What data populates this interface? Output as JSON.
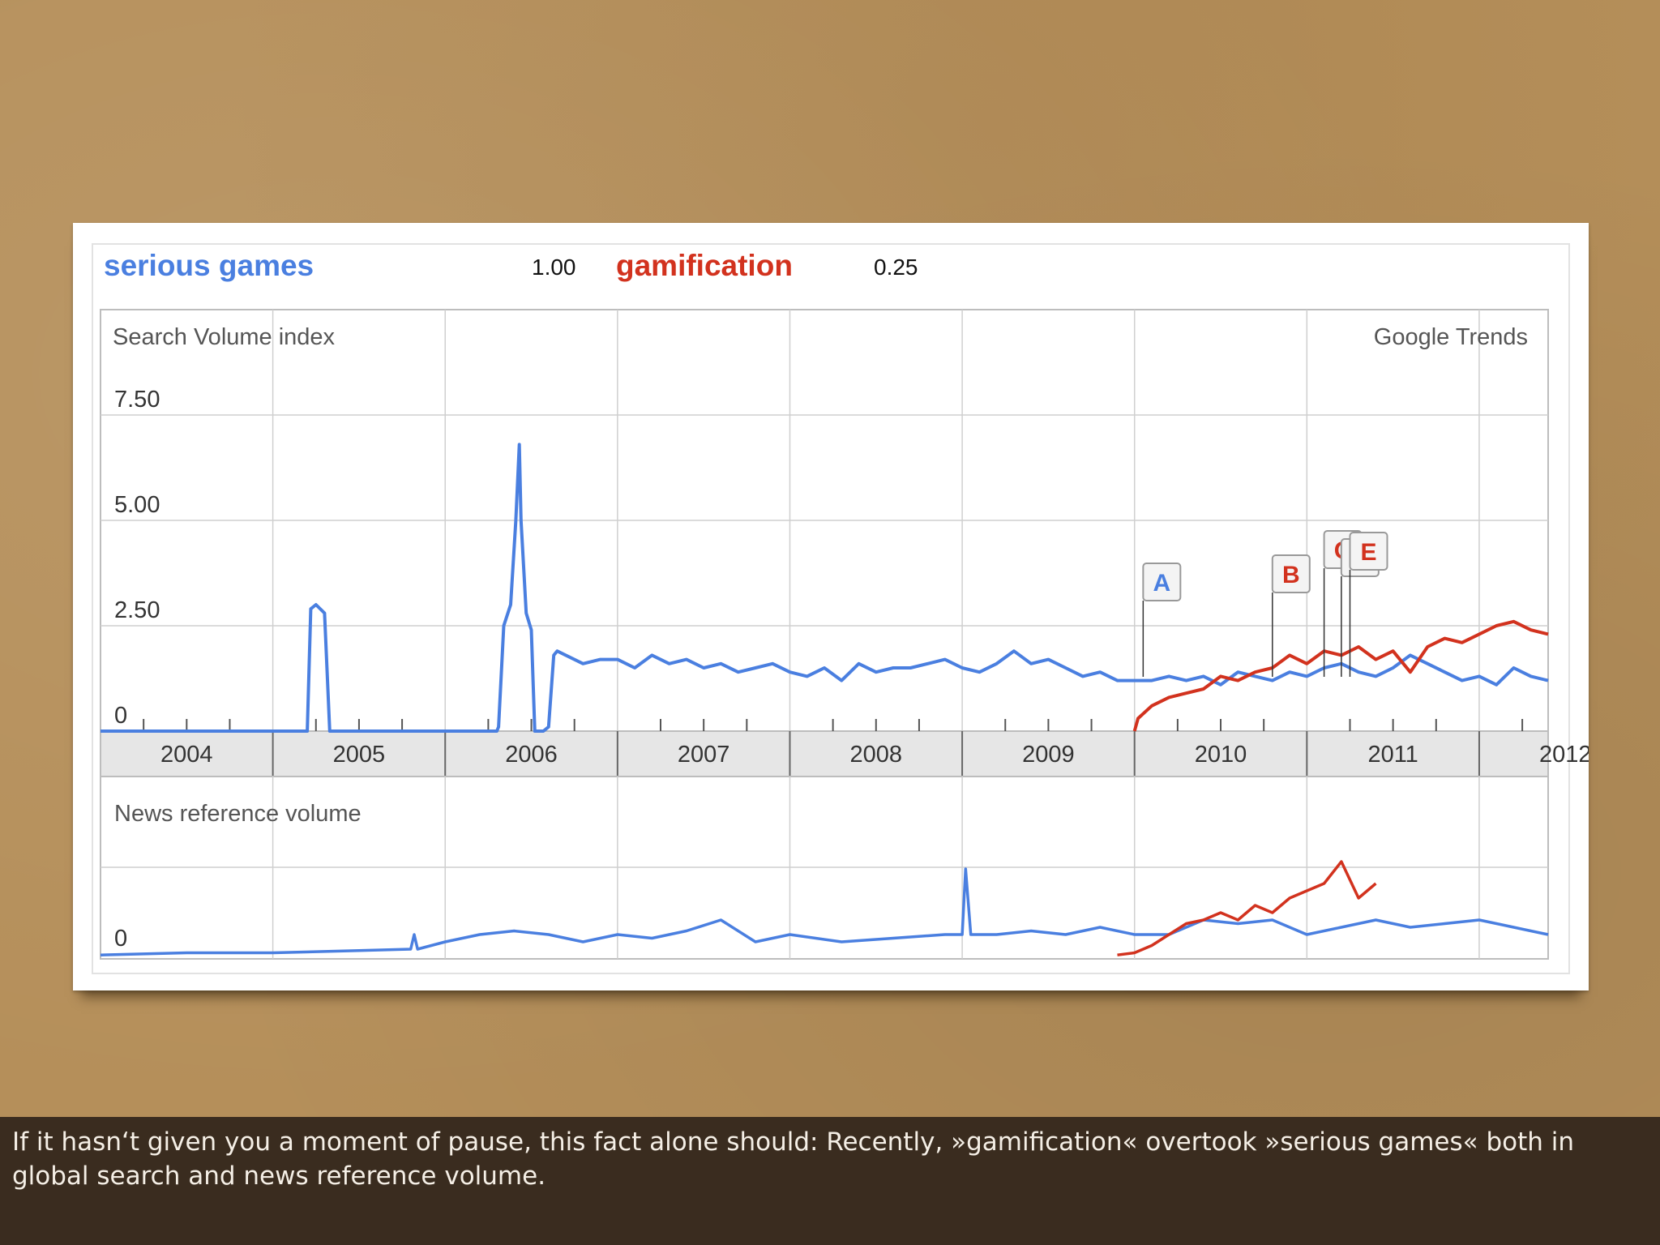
{
  "legend": {
    "series1_name": "serious games",
    "series1_value": "1.00",
    "series2_name": "gamification",
    "series2_value": "0.25"
  },
  "colors": {
    "serious_games": "#4a7fe0",
    "gamification": "#d2321e",
    "caption_background": "#3a2c1f"
  },
  "caption": "If it hasn‘t given you a moment of pause, this fact alone should: Recently, »gamification« overtook »serious games« both in global search and news reference volume.",
  "chart_data": [
    {
      "type": "line",
      "title": "Search Volume index",
      "source_label": "Google Trends",
      "y_tick_labels": [
        "0",
        "2.50",
        "5.00",
        "7.50"
      ],
      "ylim": [
        0,
        7.5
      ],
      "x_tick_labels": [
        "2004",
        "2005",
        "2006",
        "2007",
        "2008",
        "2009",
        "2010",
        "2011",
        "2012"
      ],
      "xlim": [
        2004.0,
        2012.4
      ],
      "series": [
        {
          "name": "serious games",
          "x": [
            2004.0,
            2005.2,
            2005.22,
            2005.25,
            2005.3,
            2005.33,
            2005.34,
            2006.3,
            2006.31,
            2006.34,
            2006.38,
            2006.41,
            2006.43,
            2006.44,
            2006.47,
            2006.5,
            2006.52,
            2006.54,
            2006.57,
            2006.6,
            2006.63,
            2006.65,
            2006.7,
            2006.8,
            2006.9,
            2007.0,
            2007.1,
            2007.2,
            2007.3,
            2007.4,
            2007.5,
            2007.6,
            2007.7,
            2007.8,
            2007.9,
            2008.0,
            2008.1,
            2008.2,
            2008.3,
            2008.4,
            2008.5,
            2008.6,
            2008.7,
            2008.8,
            2008.9,
            2009.0,
            2009.1,
            2009.2,
            2009.3,
            2009.4,
            2009.5,
            2009.6,
            2009.7,
            2009.8,
            2009.9,
            2010.0,
            2010.1,
            2010.2,
            2010.3,
            2010.4,
            2010.5,
            2010.6,
            2010.7,
            2010.8,
            2010.9,
            2011.0,
            2011.1,
            2011.2,
            2011.3,
            2011.4,
            2011.5,
            2011.6,
            2011.7,
            2011.8,
            2011.9,
            2012.0,
            2012.1,
            2012.2,
            2012.3,
            2012.4
          ],
          "y": [
            0,
            0,
            2.9,
            3.0,
            2.8,
            0,
            0,
            0,
            0.1,
            2.5,
            3.0,
            5.0,
            6.8,
            5.0,
            2.8,
            2.4,
            0,
            0,
            0,
            0.1,
            1.8,
            1.9,
            1.8,
            1.6,
            1.7,
            1.7,
            1.5,
            1.8,
            1.6,
            1.7,
            1.5,
            1.6,
            1.4,
            1.5,
            1.6,
            1.4,
            1.3,
            1.5,
            1.2,
            1.6,
            1.4,
            1.5,
            1.5,
            1.6,
            1.7,
            1.5,
            1.4,
            1.6,
            1.9,
            1.6,
            1.7,
            1.5,
            1.3,
            1.4,
            1.2,
            1.2,
            1.2,
            1.3,
            1.2,
            1.3,
            1.1,
            1.4,
            1.3,
            1.2,
            1.4,
            1.3,
            1.5,
            1.6,
            1.4,
            1.3,
            1.5,
            1.8,
            1.6,
            1.4,
            1.2,
            1.3,
            1.1,
            1.5,
            1.3,
            1.2
          ]
        },
        {
          "name": "gamification",
          "x": [
            2010.0,
            2010.02,
            2010.1,
            2010.2,
            2010.3,
            2010.4,
            2010.5,
            2010.6,
            2010.7,
            2010.8,
            2010.9,
            2011.0,
            2011.1,
            2011.2,
            2011.3,
            2011.4,
            2011.5,
            2011.6,
            2011.7,
            2011.8,
            2011.9,
            2012.0,
            2012.1,
            2012.2,
            2012.3,
            2012.4
          ],
          "y": [
            0,
            0.3,
            0.6,
            0.8,
            0.9,
            1.0,
            1.3,
            1.2,
            1.4,
            1.5,
            1.8,
            1.6,
            1.9,
            1.8,
            2.0,
            1.7,
            1.9,
            1.4,
            2.0,
            2.2,
            2.1,
            2.3,
            2.5,
            2.6,
            2.4,
            2.3
          ]
        }
      ],
      "annotations": [
        {
          "label": "A",
          "series": "serious games",
          "x": 2010.05
        },
        {
          "label": "B",
          "series": "gamification",
          "x": 2010.8
        },
        {
          "label": "C",
          "series": "gamification",
          "x": 2011.1
        },
        {
          "label": "D",
          "series": "gamification",
          "x": 2011.2
        },
        {
          "label": "E",
          "series": "gamification",
          "x": 2011.25
        }
      ]
    },
    {
      "type": "line",
      "title": "News reference volume",
      "y_tick_labels": [
        "0"
      ],
      "xlim": [
        2004.0,
        2012.4
      ],
      "series": [
        {
          "name": "serious games",
          "x": [
            2004.0,
            2004.5,
            2005.0,
            2005.5,
            2005.8,
            2005.82,
            2005.84,
            2006.0,
            2006.2,
            2006.4,
            2006.6,
            2006.8,
            2007.0,
            2007.2,
            2007.4,
            2007.6,
            2007.8,
            2008.0,
            2008.3,
            2008.6,
            2008.9,
            2009.0,
            2009.02,
            2009.05,
            2009.2,
            2009.4,
            2009.6,
            2009.8,
            2010.0,
            2010.2,
            2010.4,
            2010.6,
            2010.8,
            2011.0,
            2011.2,
            2011.4,
            2011.6,
            2011.8,
            2012.0,
            2012.2,
            2012.4
          ],
          "y": [
            0.02,
            0.05,
            0.05,
            0.08,
            0.1,
            0.3,
            0.1,
            0.2,
            0.3,
            0.35,
            0.3,
            0.2,
            0.3,
            0.25,
            0.35,
            0.5,
            0.2,
            0.3,
            0.2,
            0.25,
            0.3,
            0.3,
            1.2,
            0.3,
            0.3,
            0.35,
            0.3,
            0.4,
            0.3,
            0.3,
            0.5,
            0.45,
            0.5,
            0.3,
            0.4,
            0.5,
            0.4,
            0.45,
            0.5,
            0.4,
            0.3
          ]
        },
        {
          "name": "gamification",
          "x": [
            2009.9,
            2010.0,
            2010.1,
            2010.2,
            2010.3,
            2010.4,
            2010.5,
            2010.6,
            2010.7,
            2010.8,
            2010.9,
            2011.0,
            2011.1,
            2011.2,
            2011.3,
            2011.4
          ],
          "y": [
            0.02,
            0.05,
            0.15,
            0.3,
            0.45,
            0.5,
            0.6,
            0.5,
            0.7,
            0.6,
            0.8,
            0.9,
            1.0,
            1.3,
            0.8,
            1.0
          ]
        }
      ]
    }
  ]
}
